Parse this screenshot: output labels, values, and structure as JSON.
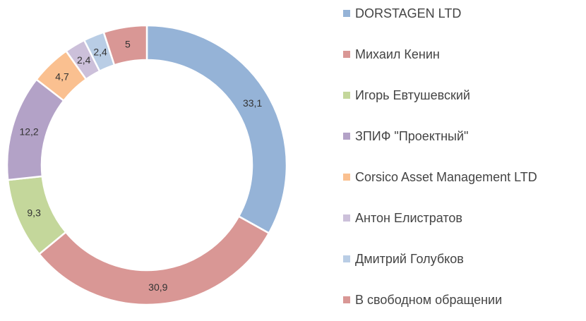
{
  "chart_data": {
    "type": "pie",
    "variant": "donut",
    "title": "",
    "start": "top, clockwise",
    "legend_position": "right",
    "categories": [
      "DORSTAGEN LTD",
      "Михаил Кенин",
      "Игорь Евтушевский",
      "ЗПИФ \"Проектный\"",
      "Corsico Asset Management LTD",
      "Антон Елистратов",
      "Дмитрий Голубков",
      "В свободном обращении"
    ],
    "values": [
      33.1,
      30.9,
      9.3,
      12.2,
      4.7,
      2.4,
      2.4,
      5
    ],
    "value_labels": [
      "33,1",
      "30,9",
      "9,3",
      "12,2",
      "4,7",
      "2,4",
      "2,4",
      "5"
    ],
    "colors": [
      "#95b3d7",
      "#d99795",
      "#c4d79b",
      "#b3a2c7",
      "#fac090",
      "#ccc0da",
      "#b9cde5",
      "#d99795"
    ]
  }
}
